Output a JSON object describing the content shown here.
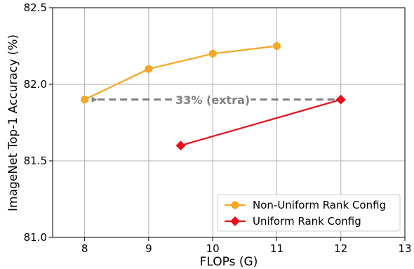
{
  "chart_data": {
    "type": "line",
    "title": "",
    "xlabel": "FLOPs (G)",
    "ylabel": "ImageNet Top-1 Accuracy (%)",
    "xlim": [
      7.5,
      13
    ],
    "ylim": [
      81.0,
      82.5
    ],
    "xticks": [
      8,
      9,
      10,
      11,
      12,
      13
    ],
    "yticks": [
      81.0,
      81.5,
      82.0,
      82.5
    ],
    "xtick_labels": [
      "8",
      "9",
      "10",
      "11",
      "12",
      "13"
    ],
    "ytick_labels": [
      "81.0",
      "81.5",
      "82.0",
      "82.5"
    ],
    "grid": true,
    "legend_position": "bottom-right",
    "series": [
      {
        "name": "Non-Uniform Rank Config",
        "color": "#f5a623",
        "marker": "circle",
        "x": [
          8,
          9,
          10,
          11
        ],
        "y": [
          81.9,
          82.1,
          82.2,
          82.25
        ]
      },
      {
        "name": "Uniform Rank Config",
        "color": "#e8111b",
        "marker": "diamond",
        "x": [
          9.5,
          12
        ],
        "y": [
          81.6,
          81.9
        ]
      }
    ],
    "annotations": [
      {
        "text": "33% (extra)",
        "type": "dashed-arrow",
        "color": "#808080",
        "from": [
          12,
          81.9
        ],
        "to": [
          8,
          81.9
        ]
      }
    ]
  }
}
